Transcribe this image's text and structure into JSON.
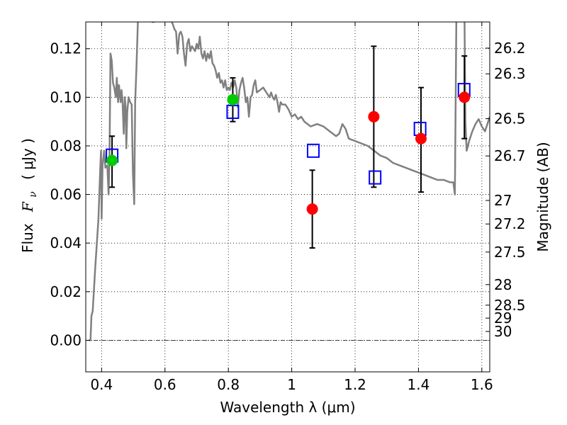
{
  "chart_data": {
    "type": "scatter",
    "xlabel": "Wavelength  λ (μm)",
    "ylabel_text": "Flux",
    "ylabel_symbol": "F",
    "ylabel_subscript": "ν",
    "ylabel_units": "( μJy )",
    "y2label": "Magnitude (AB)",
    "xlim": [
      0.35,
      1.625
    ],
    "ylim": [
      -0.013,
      0.131
    ],
    "grid": true,
    "x_ticks": [
      {
        "value": 0.4,
        "label": "0.4"
      },
      {
        "value": 0.6,
        "label": "0.6"
      },
      {
        "value": 0.8,
        "label": "0.8"
      },
      {
        "value": 1.0,
        "label": "1"
      },
      {
        "value": 1.2,
        "label": "1.2"
      },
      {
        "value": 1.4,
        "label": "1.4"
      },
      {
        "value": 1.6,
        "label": "1.6"
      }
    ],
    "y_ticks": [
      {
        "value": 0.0,
        "label": "0.00"
      },
      {
        "value": 0.02,
        "label": "0.02"
      },
      {
        "value": 0.04,
        "label": "0.04"
      },
      {
        "value": 0.06,
        "label": "0.06"
      },
      {
        "value": 0.08,
        "label": "0.08"
      },
      {
        "value": 0.1,
        "label": "0.10"
      },
      {
        "value": 0.12,
        "label": "0.12"
      }
    ],
    "y2_ticks": [
      {
        "mag": 26.2,
        "label": "26.2"
      },
      {
        "mag": 26.3,
        "label": "26.3"
      },
      {
        "mag": 26.5,
        "label": "26.5"
      },
      {
        "mag": 26.7,
        "label": "26.7"
      },
      {
        "mag": 27.0,
        "label": "27"
      },
      {
        "mag": 27.2,
        "label": "27.2"
      },
      {
        "mag": 27.5,
        "label": "27.5"
      },
      {
        "mag": 28.0,
        "label": "28"
      },
      {
        "mag": 28.5,
        "label": "28.5"
      },
      {
        "mag": 29.0,
        "label": "29"
      },
      {
        "mag": 30.0,
        "label": "30"
      }
    ],
    "sed_model": {
      "color": "#808080",
      "points": [
        [
          0.36,
          0.0
        ],
        [
          0.365,
          0.0
        ],
        [
          0.368,
          0.01
        ],
        [
          0.372,
          0.012
        ],
        [
          0.38,
          0.03
        ],
        [
          0.39,
          0.05
        ],
        [
          0.395,
          0.068
        ],
        [
          0.398,
          0.078
        ],
        [
          0.4,
          0.05
        ],
        [
          0.403,
          0.072
        ],
        [
          0.408,
          0.078
        ],
        [
          0.412,
          0.071
        ],
        [
          0.418,
          0.072
        ],
        [
          0.422,
          0.06
        ],
        [
          0.425,
          0.075
        ],
        [
          0.428,
          0.118
        ],
        [
          0.432,
          0.115
        ],
        [
          0.436,
          0.106
        ],
        [
          0.44,
          0.104
        ],
        [
          0.445,
          0.1
        ],
        [
          0.448,
          0.108
        ],
        [
          0.452,
          0.098
        ],
        [
          0.455,
          0.105
        ],
        [
          0.46,
          0.098
        ],
        [
          0.463,
          0.103
        ],
        [
          0.466,
          0.098
        ],
        [
          0.47,
          0.085
        ],
        [
          0.473,
          0.1
        ],
        [
          0.476,
          0.096
        ],
        [
          0.478,
          0.079
        ],
        [
          0.481,
          0.094
        ],
        [
          0.485,
          0.1
        ],
        [
          0.49,
          0.098
        ],
        [
          0.495,
          0.097
        ],
        [
          0.499,
          0.068
        ],
        [
          0.503,
          0.056
        ],
        [
          0.506,
          0.098
        ],
        [
          0.51,
          0.112
        ],
        [
          0.513,
          0.125
        ],
        [
          0.516,
          0.138
        ],
        [
          0.55,
          0.14
        ],
        [
          0.555,
          0.133
        ],
        [
          0.56,
          0.131
        ],
        [
          0.565,
          0.131
        ],
        [
          0.57,
          0.132
        ],
        [
          0.575,
          0.14
        ],
        [
          0.61,
          0.14
        ],
        [
          0.618,
          0.132
        ],
        [
          0.625,
          0.13
        ],
        [
          0.63,
          0.128
        ],
        [
          0.635,
          0.127
        ],
        [
          0.64,
          0.118
        ],
        [
          0.645,
          0.126
        ],
        [
          0.65,
          0.127
        ],
        [
          0.655,
          0.125
        ],
        [
          0.66,
          0.118
        ],
        [
          0.665,
          0.113
        ],
        [
          0.67,
          0.122
        ],
        [
          0.675,
          0.124
        ],
        [
          0.68,
          0.119
        ],
        [
          0.685,
          0.121
        ],
        [
          0.69,
          0.12
        ],
        [
          0.695,
          0.119
        ],
        [
          0.7,
          0.122
        ],
        [
          0.705,
          0.12
        ],
        [
          0.71,
          0.125
        ],
        [
          0.715,
          0.118
        ],
        [
          0.72,
          0.116
        ],
        [
          0.725,
          0.119
        ],
        [
          0.73,
          0.115
        ],
        [
          0.735,
          0.118
        ],
        [
          0.74,
          0.116
        ],
        [
          0.745,
          0.119
        ],
        [
          0.75,
          0.114
        ],
        [
          0.755,
          0.113
        ],
        [
          0.76,
          0.111
        ],
        [
          0.765,
          0.108
        ],
        [
          0.77,
          0.11
        ],
        [
          0.775,
          0.106
        ],
        [
          0.78,
          0.107
        ],
        [
          0.785,
          0.104
        ],
        [
          0.79,
          0.107
        ],
        [
          0.795,
          0.103
        ],
        [
          0.8,
          0.104
        ],
        [
          0.805,
          0.103
        ],
        [
          0.81,
          0.106
        ],
        [
          0.815,
          0.104
        ],
        [
          0.82,
          0.107
        ],
        [
          0.825,
          0.104
        ],
        [
          0.83,
          0.096
        ],
        [
          0.835,
          0.103
        ],
        [
          0.84,
          0.106
        ],
        [
          0.845,
          0.108
        ],
        [
          0.85,
          0.104
        ],
        [
          0.855,
          0.098
        ],
        [
          0.86,
          0.1
        ],
        [
          0.865,
          0.092
        ],
        [
          0.87,
          0.1
        ],
        [
          0.875,
          0.101
        ],
        [
          0.88,
          0.105
        ],
        [
          0.885,
          0.107
        ],
        [
          0.89,
          0.102
        ],
        [
          0.9,
          0.103
        ],
        [
          0.91,
          0.104
        ],
        [
          0.92,
          0.102
        ],
        [
          0.93,
          0.1
        ],
        [
          0.935,
          0.102
        ],
        [
          0.94,
          0.1
        ],
        [
          0.945,
          0.099
        ],
        [
          0.95,
          0.101
        ],
        [
          0.955,
          0.098
        ],
        [
          0.96,
          0.094
        ],
        [
          0.965,
          0.098
        ],
        [
          0.97,
          0.097
        ],
        [
          0.98,
          0.097
        ],
        [
          0.99,
          0.095
        ],
        [
          1.0,
          0.092
        ],
        [
          1.01,
          0.093
        ],
        [
          1.02,
          0.091
        ],
        [
          1.03,
          0.092
        ],
        [
          1.04,
          0.09
        ],
        [
          1.05,
          0.089
        ],
        [
          1.06,
          0.088
        ],
        [
          1.08,
          0.089
        ],
        [
          1.1,
          0.088
        ],
        [
          1.12,
          0.086
        ],
        [
          1.14,
          0.084
        ],
        [
          1.15,
          0.085
        ],
        [
          1.16,
          0.089
        ],
        [
          1.17,
          0.087
        ],
        [
          1.18,
          0.083
        ],
        [
          1.2,
          0.082
        ],
        [
          1.22,
          0.081
        ],
        [
          1.24,
          0.08
        ],
        [
          1.26,
          0.078
        ],
        [
          1.28,
          0.076
        ],
        [
          1.3,
          0.075
        ],
        [
          1.32,
          0.073
        ],
        [
          1.34,
          0.072
        ],
        [
          1.36,
          0.071
        ],
        [
          1.38,
          0.07
        ],
        [
          1.4,
          0.069
        ],
        [
          1.42,
          0.068
        ],
        [
          1.44,
          0.067
        ],
        [
          1.46,
          0.066
        ],
        [
          1.48,
          0.066
        ],
        [
          1.5,
          0.065
        ],
        [
          1.51,
          0.065
        ],
        [
          1.515,
          0.06
        ],
        [
          1.52,
          0.14
        ],
        [
          1.545,
          0.14
        ],
        [
          1.548,
          0.09
        ],
        [
          1.552,
          0.078
        ],
        [
          1.56,
          0.082
        ],
        [
          1.57,
          0.086
        ],
        [
          1.58,
          0.089
        ],
        [
          1.59,
          0.091
        ],
        [
          1.6,
          0.088
        ],
        [
          1.61,
          0.086
        ],
        [
          1.62,
          0.09
        ],
        [
          1.625,
          0.092
        ]
      ]
    },
    "photometry": [
      {
        "x": 0.433,
        "y": 0.074,
        "yerr_low": 0.063,
        "yerr_high": 0.084,
        "color": "#00cc00"
      },
      {
        "x": 0.814,
        "y": 0.099,
        "yerr_low": 0.09,
        "yerr_high": 0.108,
        "color": "#00cc00"
      },
      {
        "x": 1.065,
        "y": 0.054,
        "yerr_low": 0.038,
        "yerr_high": 0.07,
        "color": "#ff0000"
      },
      {
        "x": 1.259,
        "y": 0.092,
        "yerr_low": 0.063,
        "yerr_high": 0.121,
        "color": "#ff0000"
      },
      {
        "x": 1.408,
        "y": 0.083,
        "yerr_low": 0.061,
        "yerr_high": 0.104,
        "color": "#ff0000"
      },
      {
        "x": 1.545,
        "y": 0.1,
        "yerr_low": 0.083,
        "yerr_high": 0.117,
        "color": "#ff0000"
      }
    ],
    "model_photometry": [
      {
        "x": 0.433,
        "y": 0.076
      },
      {
        "x": 0.814,
        "y": 0.094
      },
      {
        "x": 1.068,
        "y": 0.078
      },
      {
        "x": 1.263,
        "y": 0.067
      },
      {
        "x": 1.405,
        "y": 0.087
      },
      {
        "x": 1.544,
        "y": 0.103
      }
    ],
    "model_photometry_color": "#0000ff",
    "errorbar_color": "#000000"
  }
}
